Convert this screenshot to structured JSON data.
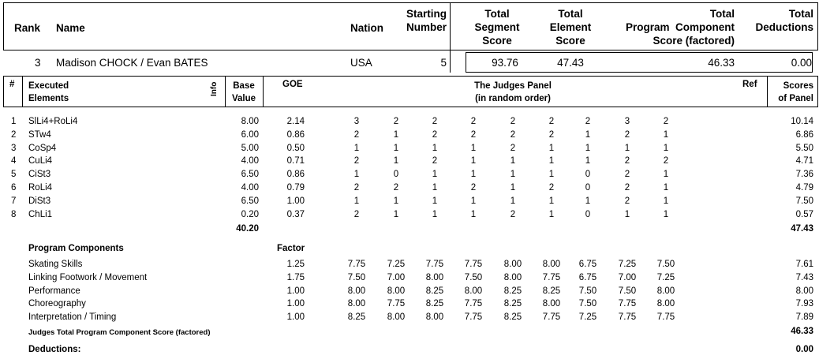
{
  "header": {
    "rank": "Rank",
    "name": "Name",
    "nation": "Nation",
    "starting_number": [
      "Starting",
      "Number"
    ],
    "tss": [
      "Total",
      "Segment",
      "Score"
    ],
    "tes": [
      "Total",
      "Element",
      "Score"
    ],
    "pcs": [
      "Total",
      "Program  Component",
      "Score (factored)"
    ],
    "ded": [
      "Total",
      "Deductions"
    ]
  },
  "skater": {
    "rank": "3",
    "name": "Madison CHOCK / Evan BATES",
    "nation": "USA",
    "starting_number": "5",
    "tss": "93.76",
    "tes": "47.43",
    "pcs": "46.33",
    "ded": "0.00"
  },
  "elements_header": {
    "num": "#",
    "executed": [
      "Executed",
      "Elements"
    ],
    "info": "Info",
    "base": [
      "Base",
      "Value"
    ],
    "goe": "GOE",
    "panel": [
      "The Judges Panel",
      "(in random order)"
    ],
    "ref": "Ref",
    "scores": [
      "Scores",
      "of Panel"
    ]
  },
  "elements": [
    {
      "num": "1",
      "name": "SlLi4+RoLi4",
      "base": "8.00",
      "goe": "2.14",
      "judges": [
        "3",
        "2",
        "2",
        "2",
        "2",
        "2",
        "2",
        "3",
        "2"
      ],
      "score": "10.14"
    },
    {
      "num": "2",
      "name": "STw4",
      "base": "6.00",
      "goe": "0.86",
      "judges": [
        "2",
        "1",
        "2",
        "2",
        "2",
        "2",
        "1",
        "2",
        "1"
      ],
      "score": "6.86"
    },
    {
      "num": "3",
      "name": "CoSp4",
      "base": "5.00",
      "goe": "0.50",
      "judges": [
        "1",
        "1",
        "1",
        "1",
        "2",
        "1",
        "1",
        "1",
        "1"
      ],
      "score": "5.50"
    },
    {
      "num": "4",
      "name": "CuLi4",
      "base": "4.00",
      "goe": "0.71",
      "judges": [
        "2",
        "1",
        "2",
        "1",
        "1",
        "1",
        "1",
        "2",
        "2"
      ],
      "score": "4.71"
    },
    {
      "num": "5",
      "name": "CiSt3",
      "base": "6.50",
      "goe": "0.86",
      "judges": [
        "1",
        "0",
        "1",
        "1",
        "1",
        "1",
        "0",
        "2",
        "1"
      ],
      "score": "7.36"
    },
    {
      "num": "6",
      "name": "RoLi4",
      "base": "4.00",
      "goe": "0.79",
      "judges": [
        "2",
        "2",
        "1",
        "2",
        "1",
        "2",
        "0",
        "2",
        "1"
      ],
      "score": "4.79"
    },
    {
      "num": "7",
      "name": "DiSt3",
      "base": "6.50",
      "goe": "1.00",
      "judges": [
        "1",
        "1",
        "1",
        "1",
        "1",
        "1",
        "1",
        "2",
        "1"
      ],
      "score": "7.50"
    },
    {
      "num": "8",
      "name": "ChLi1",
      "base": "0.20",
      "goe": "0.37",
      "judges": [
        "2",
        "1",
        "1",
        "1",
        "2",
        "1",
        "0",
        "1",
        "1"
      ],
      "score": "0.57"
    }
  ],
  "elements_total": {
    "base": "40.20",
    "score": "47.43"
  },
  "components_header": {
    "title": "Program Components",
    "factor": "Factor"
  },
  "components": [
    {
      "name": "Skating Skills",
      "factor": "1.25",
      "judges": [
        "7.75",
        "7.25",
        "7.75",
        "7.75",
        "8.00",
        "8.00",
        "6.75",
        "7.25",
        "7.50"
      ],
      "score": "7.61"
    },
    {
      "name": "Linking Footwork / Movement",
      "factor": "1.75",
      "judges": [
        "7.50",
        "7.00",
        "8.00",
        "7.50",
        "8.00",
        "7.75",
        "6.75",
        "7.00",
        "7.25"
      ],
      "score": "7.43"
    },
    {
      "name": "Performance",
      "factor": "1.00",
      "judges": [
        "8.00",
        "8.00",
        "8.25",
        "8.00",
        "8.25",
        "8.25",
        "7.50",
        "7.50",
        "8.00"
      ],
      "score": "8.00"
    },
    {
      "name": "Choreography",
      "factor": "1.00",
      "judges": [
        "8.00",
        "7.75",
        "8.25",
        "7.75",
        "8.25",
        "8.00",
        "7.50",
        "7.75",
        "8.00"
      ],
      "score": "7.93"
    },
    {
      "name": "Interpretation / Timing",
      "factor": "1.00",
      "judges": [
        "8.25",
        "8.00",
        "8.00",
        "7.75",
        "8.25",
        "7.75",
        "7.25",
        "7.75",
        "7.75"
      ],
      "score": "7.89"
    }
  ],
  "components_total": {
    "label": "Judges Total Program Component Score (factored)",
    "score": "46.33"
  },
  "deductions": {
    "label": "Deductions:",
    "score": "0.00"
  }
}
